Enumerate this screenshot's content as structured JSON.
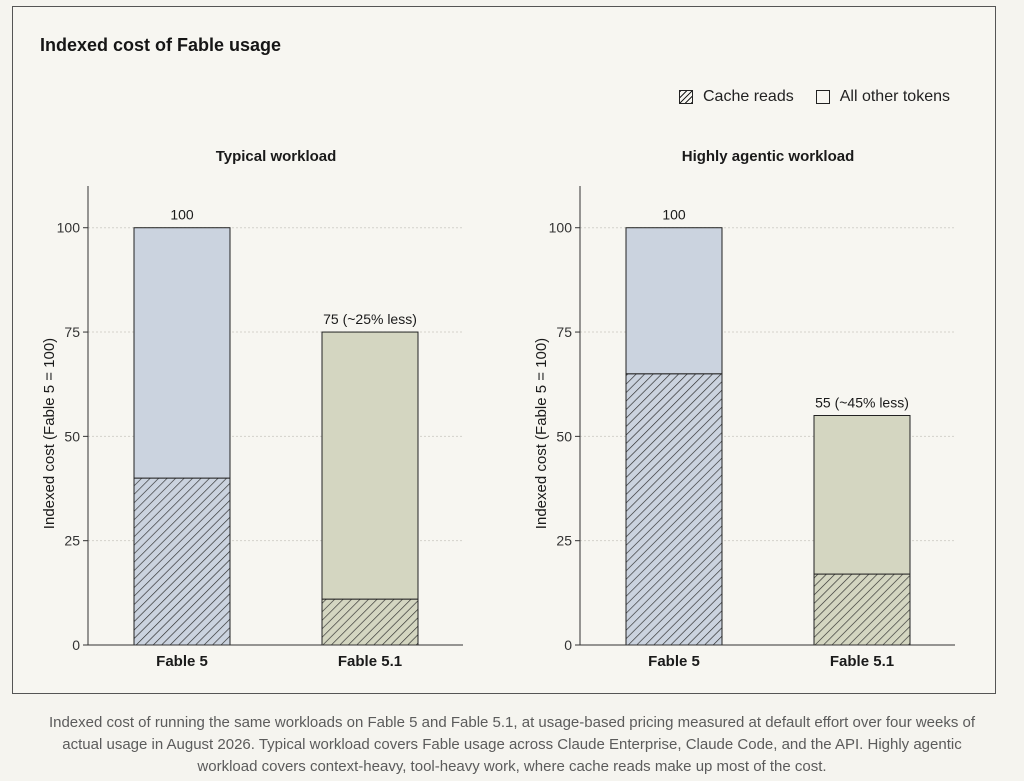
{
  "chart_data": {
    "title": "Indexed cost of Fable usage",
    "legend": {
      "placement": "top-right",
      "entries": [
        {
          "label": "Cache reads",
          "style": "hatched"
        },
        {
          "label": "All other tokens",
          "style": "solid"
        }
      ]
    },
    "ylabel": "Indexed cost (Fable 5 = 100)",
    "ylim": [
      0,
      110
    ],
    "yticks": [
      0,
      25,
      50,
      75,
      100
    ],
    "grid": "horizontal dashed",
    "panels": [
      {
        "type": "bar",
        "stacked": true,
        "title": "Typical workload",
        "categories": [
          "Fable 5",
          "Fable 5.1"
        ],
        "series": [
          {
            "name": "Cache reads",
            "values": [
              40,
              11
            ]
          },
          {
            "name": "All other tokens",
            "values": [
              60,
              64
            ]
          }
        ],
        "totals": [
          100,
          75
        ],
        "data_labels": [
          "100",
          "75 (~25% less)"
        ]
      },
      {
        "type": "bar",
        "stacked": true,
        "title": "Highly agentic workload",
        "categories": [
          "Fable 5",
          "Fable 5.1"
        ],
        "series": [
          {
            "name": "Cache reads",
            "values": [
              65,
              17
            ]
          },
          {
            "name": "All other tokens",
            "values": [
              35,
              38
            ]
          }
        ],
        "totals": [
          100,
          55
        ],
        "data_labels": [
          "100",
          "55 (~45% less)"
        ]
      }
    ],
    "colors": {
      "fable5": "#cbd3df",
      "fable51": "#d4d6c1",
      "outline": "#222222",
      "hatch": "#2b2b2b",
      "grid": "#d4d2cc"
    }
  },
  "caption": [
    "Indexed cost of running the same workloads on Fable 5 and Fable 5.1, at usage-based pricing measured at default effort over four weeks of",
    "actual usage in August 2026. Typical workload covers Fable usage across Claude Enterprise, Claude Code, and the API. Highly agentic",
    "workload covers context-heavy, tool-heavy work, where cache reads make up most of the cost."
  ]
}
